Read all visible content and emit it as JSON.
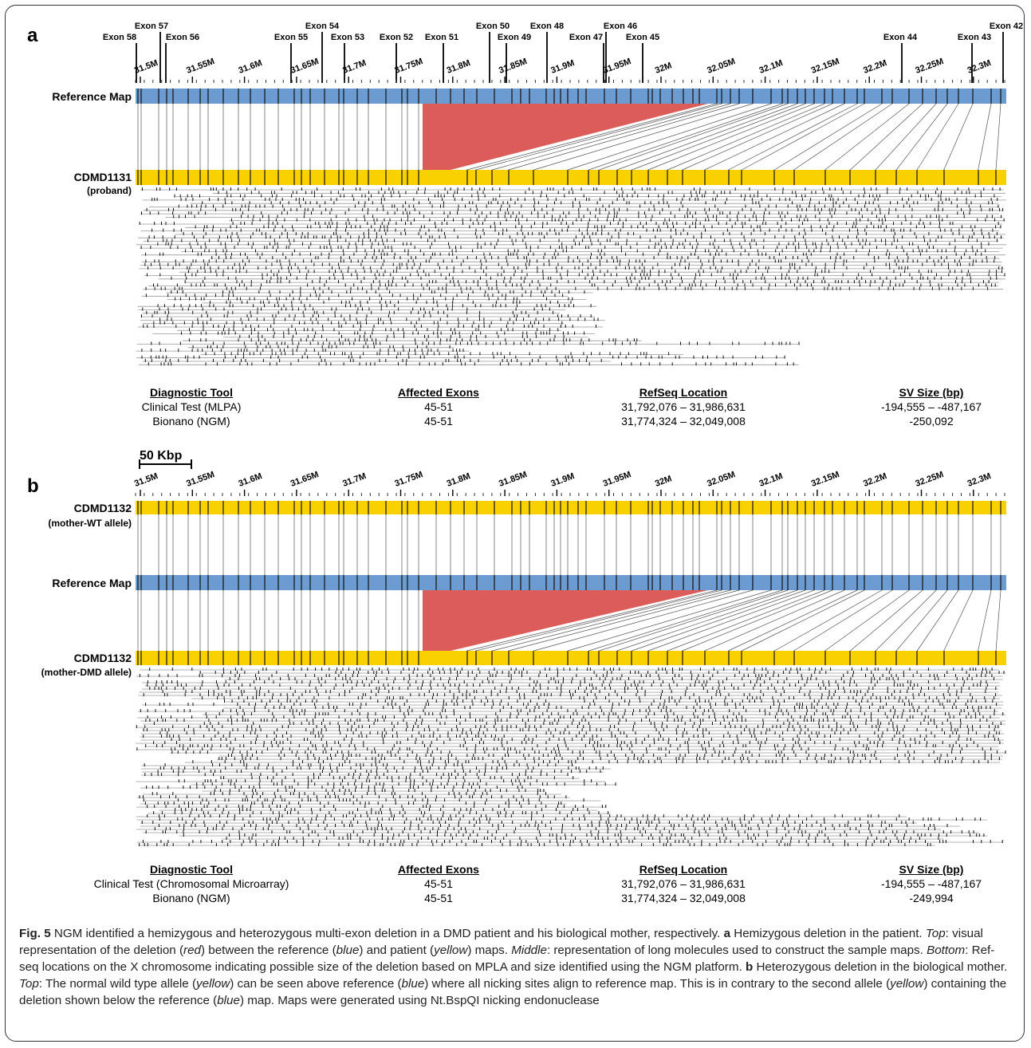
{
  "colors": {
    "reference": "#6b9bd1",
    "sample": "#f9d100",
    "deletion": "#d9534f",
    "molecule_line": "#9a9a9a",
    "nick": "#111111"
  },
  "panel_a": {
    "letter": "a",
    "exons": [
      "Exon 58",
      "Exon 57",
      "Exon 56",
      "Exon 55",
      "Exon 54",
      "Exon 53",
      "Exon 52",
      "Exon 51",
      "Exon 50",
      "Exon 49",
      "Exon 48",
      "Exon 47",
      "Exon 46",
      "Exon 45",
      "Exon 44",
      "Exon 43",
      "Exon 42"
    ],
    "coord_ticks": [
      "31.5M",
      "31.55M",
      "31.6M",
      "31.65M",
      "31.7M",
      "31.75M",
      "31.8M",
      "31.85M",
      "31.9M",
      "31.95M",
      "32M",
      "32.05M",
      "32.1M",
      "32.15M",
      "32.2M",
      "32.25M",
      "32.3M"
    ],
    "reference_label": "Reference Map",
    "sample_label": "CDMD1131",
    "sample_sublabel": "(proband)",
    "table": {
      "headers": [
        "Diagnostic Tool",
        "Affected Exons",
        "RefSeq Location",
        "SV Size (bp)"
      ],
      "rows": [
        [
          "Clinical Test (MLPA)",
          "45-51",
          "31,792,076 – 31,986,631",
          "-194,555 – -487,167"
        ],
        [
          "Bionano (NGM)",
          "45-51",
          "31,774,324 – 32,049,008",
          "-250,092"
        ]
      ]
    }
  },
  "scale_bar": {
    "label": "50 Kbp"
  },
  "panel_b": {
    "letter": "b",
    "coord_ticks": [
      "31.5M",
      "31.55M",
      "31.6M",
      "31.65M",
      "31.7M",
      "31.75M",
      "31.8M",
      "31.85M",
      "31.9M",
      "31.95M",
      "32M",
      "32.05M",
      "32.1M",
      "32.15M",
      "32.2M",
      "32.25M",
      "32.3M"
    ],
    "wt_label": "CDMD1132",
    "wt_sublabel": "(mother-WT allele)",
    "reference_label": "Reference Map",
    "dmd_label": "CDMD1132",
    "dmd_sublabel": "(mother-DMD allele)",
    "table": {
      "headers": [
        "Diagnostic Tool",
        "Affected Exons",
        "RefSeq Location",
        "SV Size (bp)"
      ],
      "rows": [
        [
          "Clinical Test (Chromosomal Microarray)",
          "45-51",
          "31,792,076 – 31,986,631",
          "-194,555 – -487,167"
        ],
        [
          "Bionano (NGM)",
          "45-51",
          "31,774,324 – 32,049,008",
          "-249,994"
        ]
      ]
    }
  },
  "caption": {
    "fig_label": "Fig. 5",
    "sentence1": " NGM identified a hemizygous and heterozygous multi-exon deletion in a DMD patient and his biological mother, respectively. ",
    "a_label": "a",
    "a_1": " Hemizygous deletion in the patient. ",
    "top_word": "Top",
    "a_2": ": visual representation of the deletion (",
    "red_word": "red",
    "a_3": ") between the reference (",
    "blue_word": "blue",
    "a_4": ") and patient (",
    "yellow_word": "yellow",
    "a_5": ") maps. ",
    "middle_word": "Middle",
    "a_6": ": representation of long molecules used to construct the sample maps. ",
    "bottom_word": "Bottom",
    "a_7": ": Ref-seq locations on the X chromosome indicating possible size of the deletion based on MPLA and size identified using the NGM platform. ",
    "b_label": "b",
    "b_1": " Heterozygous deletion in the biological mother. ",
    "b_top_word": "Top",
    "b_2": ": The normal wild type allele (",
    "b_yellow_word": "yellow",
    "b_3": ") can be seen above reference (",
    "b_blue_word": "blue",
    "b_4": ") where all nicking sites align to reference map. This is in contrary to the second allele (",
    "b_yellow_word2": "yellow",
    "b_5": ") containing the deletion shown below the reference (",
    "b_blue_word2": "blue",
    "b_6": ") map. Maps were generated using Nt.BspQI nicking endonuclease"
  }
}
